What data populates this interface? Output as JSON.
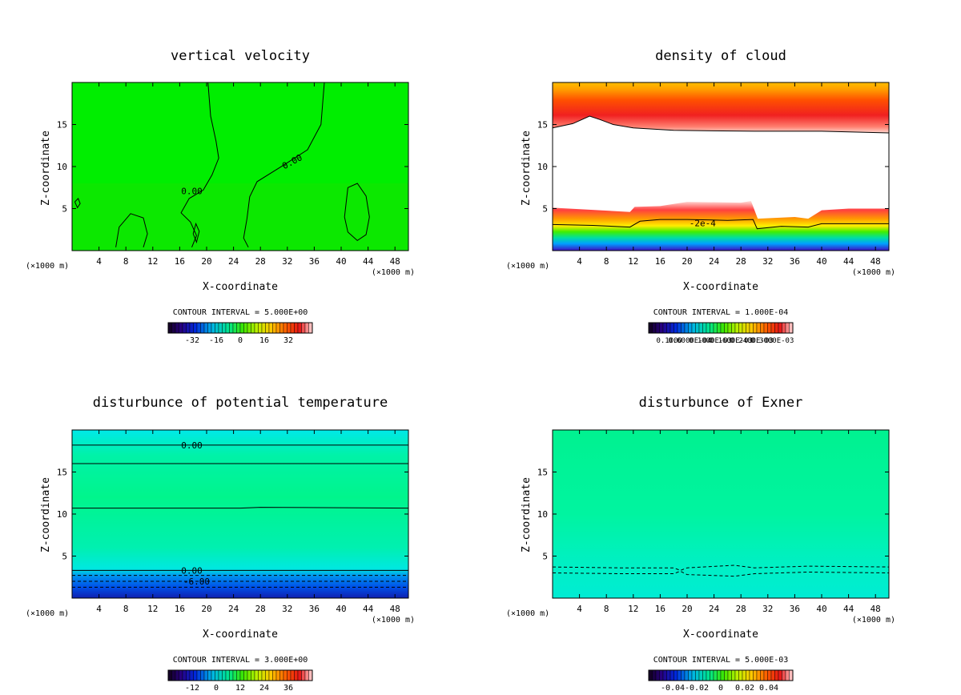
{
  "chart_data": [
    {
      "type": "heatmap",
      "title": "vertical velocity",
      "xlabel": "X-coordinate",
      "ylabel": "Z-coordinate",
      "xlim": [
        0,
        50
      ],
      "ylim": [
        0,
        20
      ],
      "x_ticks": [
        4,
        8,
        12,
        16,
        20,
        24,
        28,
        32,
        36,
        40,
        44,
        48
      ],
      "y_ticks": [
        5,
        10,
        15
      ],
      "x_unit_left": "(×1000 m)",
      "x_unit_right": "(×1000 m)",
      "contour_interval_text": "CONTOUR INTERVAL = 5.000E+00",
      "colorbar_labels": [
        "-32",
        "-16",
        "0",
        "16",
        "32"
      ],
      "colorbar_range": [
        -40,
        40
      ],
      "contour_labels": [
        {
          "text": "0.00",
          "x": 17.8,
          "y": 7.1,
          "rot": 0
        },
        {
          "text": "0.00",
          "x": 32.7,
          "y": 10.6,
          "rot": -28
        }
      ],
      "contour_lines": [
        {
          "dash": false,
          "points": [
            [
              20.2,
              20
            ],
            [
              20.6,
              16
            ],
            [
              21.4,
              13
            ],
            [
              21.8,
              11
            ],
            [
              20.8,
              9
            ],
            [
              19.5,
              7.2
            ],
            [
              17.4,
              6.2
            ],
            [
              16.2,
              4.5
            ],
            [
              17.6,
              3.4
            ],
            [
              18.5,
              1.8
            ],
            [
              17.8,
              0.4
            ]
          ]
        },
        {
          "dash": false,
          "points": [
            [
              37.5,
              20
            ],
            [
              37.0,
              15
            ],
            [
              35.0,
              12
            ],
            [
              31.5,
              10.2
            ],
            [
              27.5,
              8.2
            ],
            [
              26.4,
              6.4
            ],
            [
              26.0,
              3.8
            ],
            [
              25.5,
              1.5
            ],
            [
              26.2,
              0.4
            ]
          ]
        },
        {
          "dash": false,
          "points": [
            [
              40.5,
              4.0
            ],
            [
              41.0,
              2.2
            ],
            [
              42.4,
              1.2
            ],
            [
              43.7,
              1.9
            ],
            [
              44.2,
              4.0
            ],
            [
              43.7,
              6.5
            ],
            [
              42.4,
              8.0
            ],
            [
              41.0,
              7.5
            ],
            [
              40.5,
              4.0
            ]
          ]
        },
        {
          "dash": false,
          "points": [
            [
              6.5,
              0.4
            ],
            [
              7.0,
              2.8
            ],
            [
              8.7,
              4.4
            ],
            [
              10.6,
              3.9
            ],
            [
              11.2,
              2.0
            ],
            [
              10.6,
              0.4
            ]
          ]
        },
        {
          "dash": false,
          "points": [
            [
              0.4,
              5.8
            ],
            [
              0.9,
              6.2
            ],
            [
              1.2,
              5.6
            ],
            [
              0.8,
              5.1
            ],
            [
              0.4,
              5.8
            ]
          ]
        },
        {
          "dash": false,
          "points": [
            [
              18.0,
              2.0
            ],
            [
              18.4,
              3.2
            ],
            [
              18.9,
              2.3
            ],
            [
              18.5,
              1.0
            ],
            [
              18.0,
              2.0
            ]
          ]
        }
      ],
      "fill": [
        {
          "z0": 0,
          "z1": 20,
          "color": "#00ee00"
        },
        {
          "z0": 0,
          "z1": 8,
          "color": "#22dd00"
        }
      ]
    },
    {
      "type": "heatmap",
      "title": "density of cloud",
      "xlabel": "X-coordinate",
      "ylabel": "Z-coordinate",
      "xlim": [
        0,
        50
      ],
      "ylim": [
        0,
        20
      ],
      "x_ticks": [
        4,
        8,
        12,
        16,
        20,
        24,
        28,
        32,
        36,
        40,
        44,
        48
      ],
      "y_ticks": [
        5,
        10,
        15
      ],
      "x_unit_left": "(×1000 m)",
      "x_unit_right": "(×1000 m)",
      "contour_interval_text": "CONTOUR INTERVAL = 1.000E-04",
      "colorbar_labels": [
        "0.1000",
        "0.6000E-04",
        "0.1000E-03",
        "0.1600E-03",
        "0.2400E-03",
        "0.3000E-03"
      ],
      "colorbar_range": [
        0,
        0.0003
      ],
      "contour_labels": [
        {
          "text": "-2e-4",
          "x": 22.3,
          "y": 3.3,
          "rot": 0
        }
      ],
      "contour_lines": [
        {
          "dash": false,
          "points": [
            [
              0,
              14.6
            ],
            [
              3,
              15.1
            ],
            [
              5.5,
              16.0
            ],
            [
              7,
              15.6
            ],
            [
              9,
              15.0
            ],
            [
              12,
              14.6
            ],
            [
              18,
              14.3
            ],
            [
              30,
              14.2
            ],
            [
              40,
              14.2
            ],
            [
              50,
              14.0
            ]
          ]
        },
        {
          "dash": false,
          "points": [
            [
              0,
              3.1
            ],
            [
              6,
              3.0
            ],
            [
              11.5,
              2.8
            ],
            [
              13,
              3.5
            ],
            [
              16,
              3.7
            ],
            [
              20,
              3.7
            ],
            [
              26,
              3.6
            ],
            [
              29.8,
              3.7
            ],
            [
              30.4,
              2.6
            ],
            [
              34,
              2.9
            ],
            [
              38,
              2.8
            ],
            [
              40,
              3.2
            ],
            [
              44,
              3.2
            ],
            [
              50,
              3.2
            ]
          ]
        }
      ],
      "bands": [
        {
          "lower": [
            [
              0,
              14.6
            ],
            [
              3,
              15.1
            ],
            [
              5.5,
              16.0
            ],
            [
              7,
              15.6
            ],
            [
              9,
              15.0
            ],
            [
              12,
              14.6
            ],
            [
              18,
              14.3
            ],
            [
              30,
              14.2
            ],
            [
              40,
              14.2
            ],
            [
              50,
              14.0
            ]
          ],
          "upper_z": 20,
          "gradient": "top"
        },
        {
          "lower": [
            [
              0,
              0
            ],
            [
              50,
              0
            ]
          ],
          "upper": [
            [
              0,
              5.1
            ],
            [
              11.5,
              4.6
            ],
            [
              12.2,
              5.2
            ],
            [
              16,
              5.3
            ],
            [
              20,
              5.8
            ],
            [
              28,
              5.7
            ],
            [
              29.5,
              5.9
            ],
            [
              30.5,
              3.8
            ],
            [
              36,
              4.0
            ],
            [
              38,
              3.8
            ],
            [
              40,
              4.8
            ],
            [
              44,
              5.0
            ],
            [
              50,
              5.0
            ]
          ],
          "gradient": "bottom"
        }
      ]
    },
    {
      "type": "heatmap",
      "title": "disturbunce of potential temperature",
      "xlabel": "X-coordinate",
      "ylabel": "Z-coordinate",
      "xlim": [
        0,
        50
      ],
      "ylim": [
        0,
        20
      ],
      "x_ticks": [
        4,
        8,
        12,
        16,
        20,
        24,
        28,
        32,
        36,
        40,
        44,
        48
      ],
      "y_ticks": [
        5,
        10,
        15
      ],
      "x_unit_left": "(×1000 m)",
      "x_unit_right": "(×1000 m)",
      "contour_interval_text": "CONTOUR INTERVAL = 3.000E+00",
      "colorbar_labels": [
        "-12",
        "0",
        "12",
        "24",
        "36"
      ],
      "colorbar_range": [
        -18,
        42
      ],
      "contour_labels": [
        {
          "text": "0.00",
          "x": 17.8,
          "y": 18.2,
          "rot": 0
        },
        {
          "text": "0.00",
          "x": 17.8,
          "y": 3.3,
          "rot": 0
        },
        {
          "text": "-6.00",
          "x": 18.5,
          "y": 2.0,
          "rot": 0
        }
      ],
      "contour_lines": [
        {
          "dash": false,
          "points": [
            [
              0,
              18.2
            ],
            [
              50,
              18.2
            ]
          ]
        },
        {
          "dash": false,
          "points": [
            [
              0,
              16.0
            ],
            [
              50,
              16.0
            ]
          ]
        },
        {
          "dash": false,
          "points": [
            [
              0,
              10.7
            ],
            [
              25,
              10.7
            ],
            [
              28,
              10.8
            ],
            [
              50,
              10.7
            ]
          ]
        },
        {
          "dash": false,
          "points": [
            [
              0,
              3.3
            ],
            [
              50,
              3.3
            ]
          ]
        },
        {
          "dash": true,
          "points": [
            [
              0,
              2.7
            ],
            [
              50,
              2.7
            ]
          ]
        },
        {
          "dash": true,
          "points": [
            [
              0,
              2.0
            ],
            [
              50,
              2.0
            ]
          ]
        },
        {
          "dash": true,
          "points": [
            [
              0,
              1.3
            ],
            [
              50,
              1.3
            ]
          ]
        }
      ],
      "vgrad": [
        {
          "z": 20,
          "color": "#00e8e8"
        },
        {
          "z": 17,
          "color": "#00f2a8"
        },
        {
          "z": 12,
          "color": "#00f58c"
        },
        {
          "z": 6,
          "color": "#00f0b0"
        },
        {
          "z": 3.5,
          "color": "#00e8e0"
        },
        {
          "z": 2.6,
          "color": "#0090ee"
        },
        {
          "z": 1.3,
          "color": "#0050e8"
        },
        {
          "z": 0,
          "color": "#1020b0"
        }
      ]
    },
    {
      "type": "heatmap",
      "title": "disturbunce of Exner",
      "xlabel": "X-coordinate",
      "ylabel": "Z-coordinate",
      "xlim": [
        0,
        50
      ],
      "ylim": [
        0,
        20
      ],
      "x_ticks": [
        4,
        8,
        12,
        16,
        20,
        24,
        28,
        32,
        36,
        40,
        44,
        48
      ],
      "y_ticks": [
        5,
        10,
        15
      ],
      "x_unit_left": "(×1000 m)",
      "x_unit_right": "(×1000 m)",
      "contour_interval_text": "CONTOUR INTERVAL = 5.000E-03",
      "colorbar_labels": [
        "-0.04",
        "-0.02",
        "0",
        "0.02",
        "0.04"
      ],
      "colorbar_range": [
        -0.05,
        0.05
      ],
      "contour_labels": [],
      "contour_lines": [
        {
          "dash": true,
          "points": [
            [
              0,
              3.7
            ],
            [
              10,
              3.6
            ],
            [
              18,
              3.6
            ],
            [
              19,
              3.3
            ],
            [
              20,
              3.6
            ],
            [
              27,
              3.9
            ],
            [
              30,
              3.6
            ],
            [
              38,
              3.8
            ],
            [
              50,
              3.7
            ]
          ]
        },
        {
          "dash": true,
          "points": [
            [
              0,
              3.0
            ],
            [
              10,
              2.9
            ],
            [
              18,
              2.9
            ],
            [
              19,
              3.2
            ],
            [
              20,
              2.8
            ],
            [
              27,
              2.6
            ],
            [
              30,
              2.9
            ],
            [
              38,
              3.1
            ],
            [
              50,
              3.0
            ]
          ]
        }
      ],
      "vgrad": [
        {
          "z": 20,
          "color": "#00f290"
        },
        {
          "z": 10,
          "color": "#00f4a0"
        },
        {
          "z": 4,
          "color": "#00f0c4"
        },
        {
          "z": 0,
          "color": "#00ecd4"
        }
      ]
    }
  ]
}
